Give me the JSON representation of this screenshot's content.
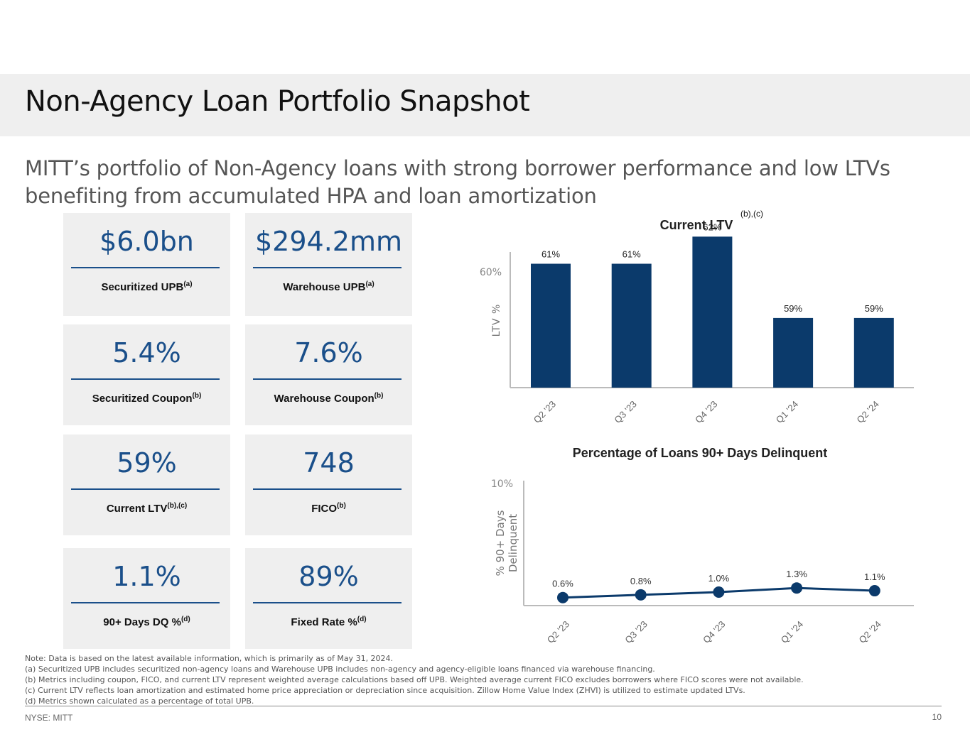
{
  "header": {
    "title": "Non-Agency Loan Portfolio Snapshot",
    "subtitle": "MITT’s portfolio of Non-Agency loans with strong borrower performance and low LTVs benefiting from accumulated HPA and loan amortization"
  },
  "metrics": [
    {
      "value": "$6.0bn",
      "label": "Securitized UPB",
      "sup": "(a)"
    },
    {
      "value": "$294.2mm",
      "label": "Warehouse UPB",
      "sup": "(a)"
    },
    {
      "value": "5.4%",
      "label": "Securitized Coupon",
      "sup": "(b)"
    },
    {
      "value": "7.6%",
      "label": "Warehouse Coupon",
      "sup": "(b)"
    },
    {
      "value": "59%",
      "label": "Current LTV",
      "sup": "(b),(c)"
    },
    {
      "value": "748",
      "label": "FICO",
      "sup": "(b)"
    },
    {
      "value": "1.1%",
      "label": "90+ Days DQ %",
      "sup": "(d)"
    },
    {
      "value": "89%",
      "label": "Fixed Rate %",
      "sup": "(d)"
    }
  ],
  "chart_data": [
    {
      "type": "bar",
      "title": "Current LTV",
      "title_sup": "(b),(c)",
      "categories": [
        "Q2 '23",
        "Q3 '23",
        "Q4 '23",
        "Q1 '24",
        "Q2 '24"
      ],
      "values": [
        61,
        61,
        62,
        59,
        59
      ],
      "data_labels": [
        "61%",
        "61%",
        "62%",
        "59%",
        "59%"
      ],
      "xlabel": "",
      "ylabel": "LTV %",
      "y_tick_label": "60%",
      "color": "#0b3a6b"
    },
    {
      "type": "line",
      "title": "Percentage of Loans 90+ Days Delinquent",
      "categories": [
        "Q2 '23",
        "Q3 '23",
        "Q4 '23",
        "Q1 '24",
        "Q2 '24"
      ],
      "values": [
        0.6,
        0.8,
        1.0,
        1.3,
        1.1
      ],
      "data_labels": [
        "0.6%",
        "0.8%",
        "1.0%",
        "1.3%",
        "1.1%"
      ],
      "xlabel": "",
      "ylabel_lines": [
        "% 90+ Days",
        "Delinquent"
      ],
      "y_tick_label": "10%",
      "color": "#0b3a6b"
    }
  ],
  "notes": [
    "Note: Data is based on the latest available information, which is primarily as of May 31, 2024.",
    "(a) Securitized UPB includes securitized non-agency loans and Warehouse UPB includes non-agency and agency-eligible loans financed via warehouse financing.",
    "(b) Metrics including coupon, FICO, and current LTV represent weighted average calculations based off UPB. Weighted average current FICO excludes borrowers where FICO scores were not available.",
    "(c) Current LTV reflects loan amortization and estimated home price appreciation or depreciation since acquisition. Zillow Home Value Index (ZHVI) is utilized to estimate updated LTVs.",
    "(d) Metrics shown calculated as a percentage of total UPB."
  ],
  "footer": {
    "ticker": "NYSE: MITT",
    "page": "10"
  }
}
